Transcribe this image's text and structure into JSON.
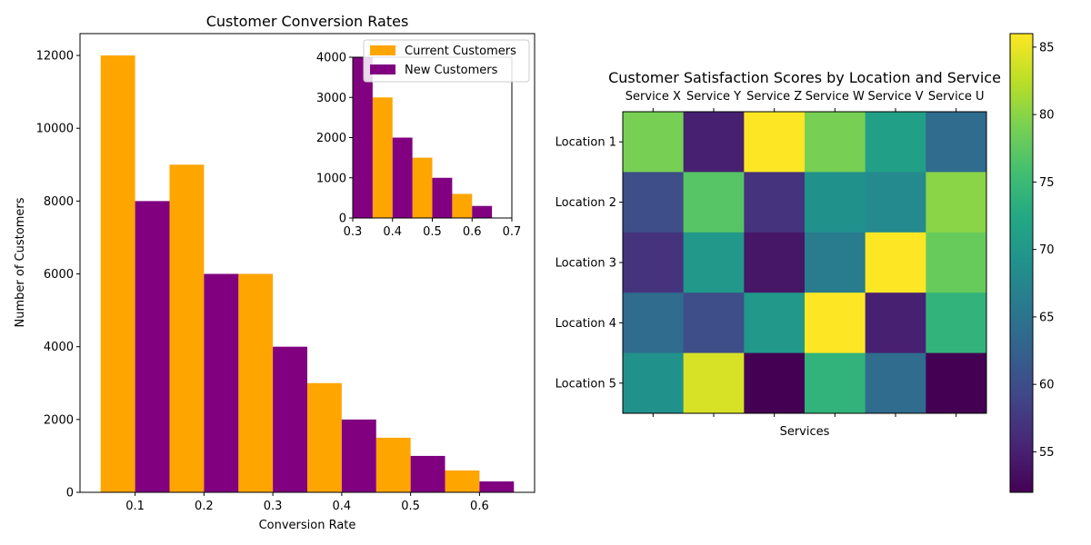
{
  "chart_data": [
    {
      "type": "bar",
      "title": "Customer Conversion Rates",
      "xlabel": "Conversion Rate",
      "ylabel": "Number of Customers",
      "categories": [
        "0.1",
        "0.2",
        "0.3",
        "0.4",
        "0.5",
        "0.6"
      ],
      "x": [
        0.1,
        0.2,
        0.3,
        0.4,
        0.5,
        0.6
      ],
      "xlim": [
        0.02,
        0.68
      ],
      "ylim": [
        0,
        12600
      ],
      "xticks": [
        "0.1",
        "0.2",
        "0.3",
        "0.4",
        "0.5",
        "0.6"
      ],
      "yticks": [
        "0",
        "2000",
        "4000",
        "6000",
        "8000",
        "10000",
        "12000"
      ],
      "legend_position": "upper-right",
      "series": [
        {
          "name": "Current Customers",
          "color": "#ffa500",
          "values": [
            12000,
            9000,
            6000,
            3000,
            1500,
            600
          ]
        },
        {
          "name": "New Customers",
          "color": "#800080",
          "values": [
            8000,
            6000,
            4000,
            2000,
            1000,
            300
          ]
        }
      ],
      "inset": {
        "type": "bar",
        "xlim": [
          0.3,
          0.7
        ],
        "ylim": [
          0,
          4000
        ],
        "xticks": [
          "0.3",
          "0.4",
          "0.5",
          "0.6",
          "0.7"
        ],
        "yticks": [
          "0",
          "1000",
          "2000",
          "3000",
          "4000"
        ]
      }
    },
    {
      "type": "heatmap",
      "title": "Customer Satisfaction Scores by Location and Service",
      "xlabel": "Services",
      "ylabel": "",
      "columns": [
        "Service X",
        "Service Y",
        "Service Z",
        "Service W",
        "Service V",
        "Service U"
      ],
      "rows": [
        "Location 1",
        "Location 2",
        "Location 3",
        "Location 4",
        "Location 5"
      ],
      "values": [
        [
          79,
          55,
          86,
          79,
          71,
          64
        ],
        [
          60,
          77,
          57,
          69,
          68,
          80
        ],
        [
          57,
          70,
          54,
          66,
          86,
          78
        ],
        [
          64,
          60,
          70,
          86,
          55,
          74
        ],
        [
          69,
          84,
          52,
          74,
          64,
          52
        ]
      ],
      "colormap": "viridis",
      "colorbar": {
        "min": 52,
        "max": 86,
        "ticks": [
          "55",
          "60",
          "65",
          "70",
          "75",
          "80",
          "85"
        ]
      }
    }
  ]
}
